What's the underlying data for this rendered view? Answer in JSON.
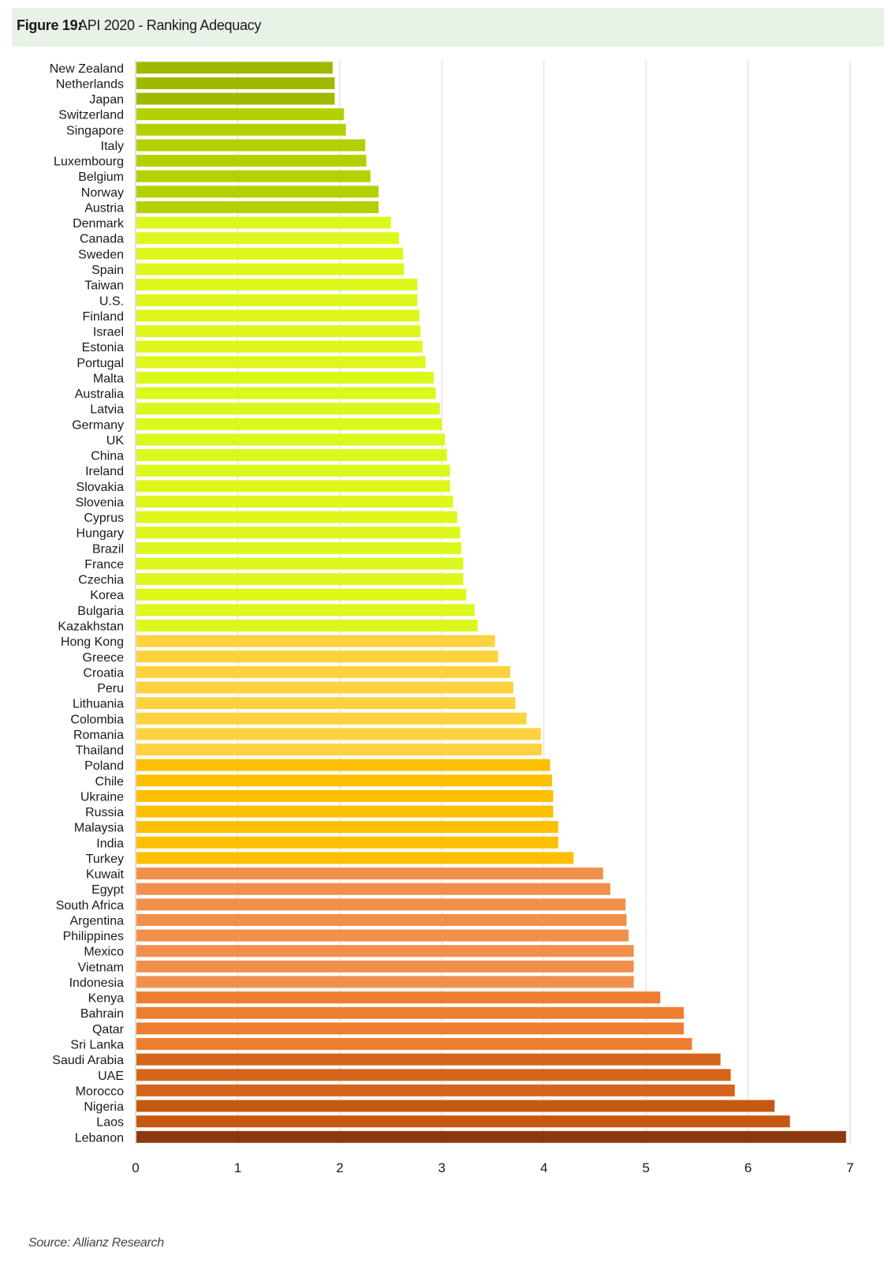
{
  "figure": {
    "label": "Figure 19:",
    "title": "API 2020 - Ranking Adequacy"
  },
  "source": "Source: Allianz Research",
  "chart_data": {
    "type": "bar",
    "orientation": "horizontal",
    "title": "API 2020 - Ranking Adequacy",
    "xlim": [
      0,
      7
    ],
    "xticks": [
      0,
      1,
      2,
      3,
      4,
      5,
      6,
      7
    ],
    "grid": true,
    "categories": [
      "New Zealand",
      "Netherlands",
      "Japan",
      "Switzerland",
      "Singapore",
      "Italy",
      "Luxembourg",
      "Belgium",
      "Norway",
      "Austria",
      "Denmark",
      "Canada",
      "Sweden",
      "Spain",
      "Taiwan",
      "U.S.",
      "Finland",
      "Israel",
      "Estonia",
      "Portugal",
      "Malta",
      "Australia",
      "Latvia",
      "Germany",
      "UK",
      "China",
      "Ireland",
      "Slovakia",
      "Slovenia",
      "Cyprus",
      "Hungary",
      "Brazil",
      "France",
      "Czechia",
      "Korea",
      "Bulgaria",
      "Kazakhstan",
      "Hong Kong",
      "Greece",
      "Croatia",
      "Peru",
      "Lithuania",
      "Colombia",
      "Romania",
      "Thailand",
      "Poland",
      "Chile",
      "Ukraine",
      "Russia",
      "Malaysia",
      "India",
      "Turkey",
      "Kuwait",
      "Egypt",
      "South Africa",
      "Argentina",
      "Philippines",
      "Mexico",
      "Vietnam",
      "Indonesia",
      "Kenya",
      "Bahrain",
      "Qatar",
      "Sri Lanka",
      "Saudi Arabia",
      "UAE",
      "Morocco",
      "Nigeria",
      "Laos",
      "Lebanon"
    ],
    "values": [
      1.93,
      1.95,
      1.95,
      2.04,
      2.06,
      2.25,
      2.26,
      2.3,
      2.38,
      2.38,
      2.5,
      2.58,
      2.62,
      2.63,
      2.76,
      2.76,
      2.78,
      2.79,
      2.81,
      2.84,
      2.92,
      2.94,
      2.98,
      3.0,
      3.03,
      3.05,
      3.08,
      3.08,
      3.11,
      3.15,
      3.18,
      3.19,
      3.21,
      3.21,
      3.24,
      3.32,
      3.35,
      3.52,
      3.55,
      3.67,
      3.7,
      3.72,
      3.83,
      3.97,
      3.98,
      4.06,
      4.08,
      4.09,
      4.09,
      4.14,
      4.14,
      4.29,
      4.58,
      4.65,
      4.8,
      4.81,
      4.83,
      4.88,
      4.88,
      4.88,
      5.14,
      5.37,
      5.37,
      5.45,
      5.73,
      5.83,
      5.87,
      6.26,
      6.41,
      6.96
    ],
    "colors": [
      "#a0b900",
      "#a0b900",
      "#a0b900",
      "#b4d000",
      "#b4d000",
      "#b4d000",
      "#b4d000",
      "#b4d000",
      "#b4d000",
      "#b4d000",
      "#dcf71b",
      "#dcf71b",
      "#dcf71b",
      "#dcf71b",
      "#dcf71b",
      "#dcf71b",
      "#dcf71b",
      "#dcf71b",
      "#dcf71b",
      "#dcf71b",
      "#dcf71b",
      "#dcf71b",
      "#dcf71b",
      "#dcf71b",
      "#dcf71b",
      "#dcf71b",
      "#dcf71b",
      "#dcf71b",
      "#dcf71b",
      "#dcf71b",
      "#dcf71b",
      "#dcf71b",
      "#dcf71b",
      "#dcf71b",
      "#dcf71b",
      "#dcf71b",
      "#dcf71b",
      "#fdd23e",
      "#fdd23e",
      "#fdd23e",
      "#fdd23e",
      "#fdd23e",
      "#fdd23e",
      "#fdd23e",
      "#fdd23e",
      "#fdbf00",
      "#fdbf00",
      "#fdbf00",
      "#fdbf00",
      "#fdbf00",
      "#fdbf00",
      "#fdbf00",
      "#f0904c",
      "#f0904c",
      "#f0904c",
      "#f0904c",
      "#f0904c",
      "#f0904c",
      "#f0904c",
      "#f0904c",
      "#ed7d31",
      "#ed7d31",
      "#ed7d31",
      "#ed7d31",
      "#d4651a",
      "#d4651a",
      "#d4651a",
      "#c65911",
      "#c65911",
      "#8b3a0f"
    ]
  }
}
